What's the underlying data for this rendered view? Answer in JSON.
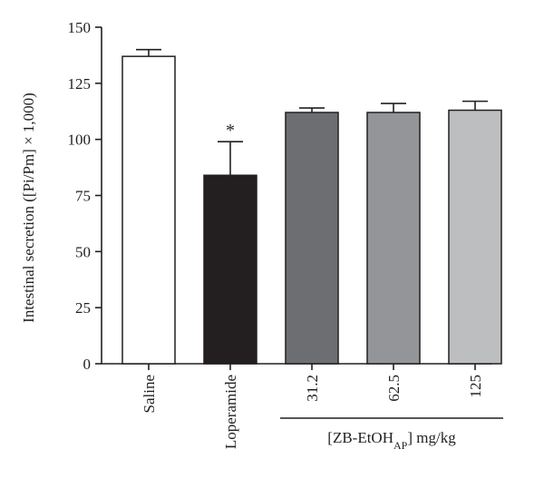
{
  "chart_data": {
    "type": "bar",
    "categories": [
      "Saline",
      "Loperamide",
      "31.2",
      "62.5",
      "125"
    ],
    "values": [
      137,
      84,
      112,
      112,
      113
    ],
    "errors": [
      3,
      15,
      2,
      4,
      4
    ],
    "annotations": [
      "",
      "*",
      "",
      "",
      ""
    ],
    "colors": [
      "#ffffff",
      "#231f20",
      "#6d6e71",
      "#939598",
      "#bcbec0"
    ],
    "ylabel": "Intestinal secretion ([Pi/Pm] × 1,000)",
    "ylim": [
      0,
      150
    ],
    "yticks": [
      "0",
      "25",
      "50",
      "75",
      "100",
      "125",
      "150"
    ],
    "group_label": {
      "prefix": "[ZB-EtOH",
      "subscript": "AP",
      "suffix": "] mg/kg",
      "categories": [
        "31.2",
        "62.5",
        "125"
      ]
    },
    "grid": false,
    "legend": "none"
  }
}
